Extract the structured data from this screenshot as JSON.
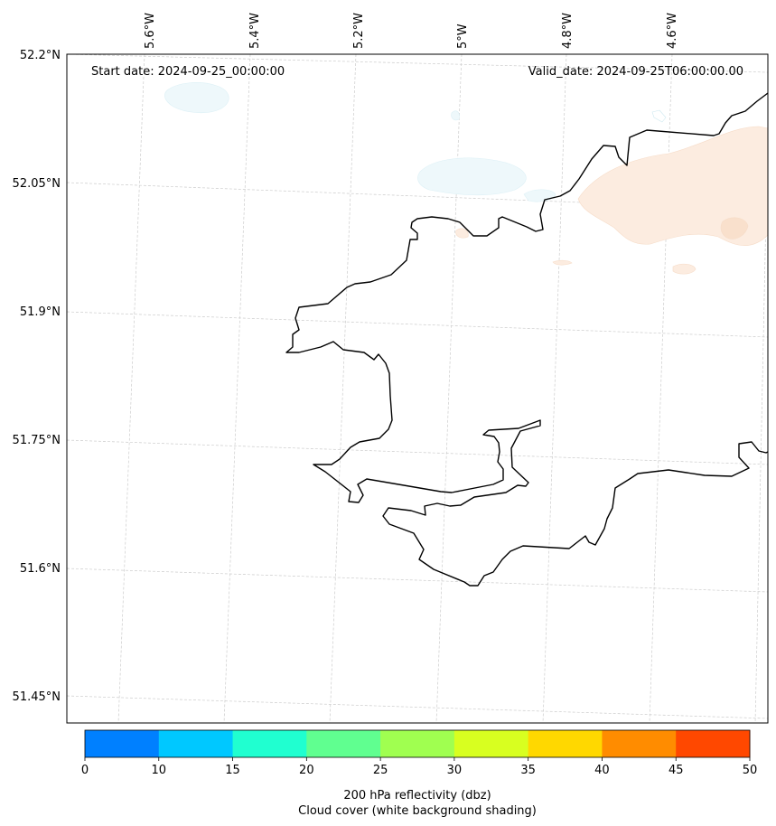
{
  "header": {
    "start_date": "Start date: 2024-09-25_00:00:00",
    "valid_date": "Valid_date: 2024-09-25T06:00:00.00"
  },
  "longitude_labels": [
    "5.6°W",
    "5.4°W",
    "5.2°W",
    "5°W",
    "4.8°W",
    "4.6°W"
  ],
  "latitude_labels": [
    "52.2°N",
    "52.05°N",
    "51.9°N",
    "51.75°N",
    "51.6°N",
    "51.45°N"
  ],
  "colorbar": {
    "ticks": [
      "0",
      "10",
      "15",
      "20",
      "25",
      "30",
      "35",
      "40",
      "45",
      "50"
    ],
    "colors": [
      "#0080ff",
      "#00c8ff",
      "#20ffd0",
      "#60ff90",
      "#a0ff50",
      "#d8ff20",
      "#ffd800",
      "#ff8c00",
      "#ff4800"
    ],
    "label_line1": "200 hPa reflectivity (dbz)",
    "label_line2": "Cloud cover (white background shading)"
  },
  "map": {
    "coastline_color": "#000000",
    "gridline_color": "#cccccc",
    "cloud_color": "#e8f6fb",
    "reflectivity_light_color": "#fbe8d8"
  }
}
